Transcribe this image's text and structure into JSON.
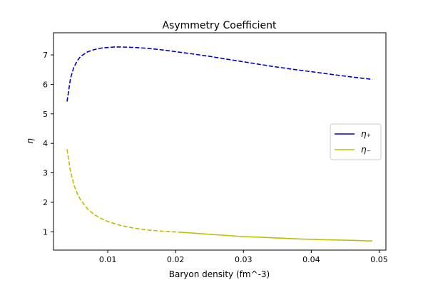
{
  "chart_data": {
    "type": "line",
    "title": "Asymmetry Coefficient",
    "xlabel": "Baryon density (fm^-3)",
    "ylabel": "η",
    "xlim": [
      0.002,
      0.051
    ],
    "ylim": [
      0.38,
      7.75
    ],
    "xticks": [
      0.01,
      0.02,
      0.03,
      0.04,
      0.05
    ],
    "xtick_labels": [
      "0.01",
      "0.02",
      "0.03",
      "0.04",
      "0.05"
    ],
    "yticks": [
      1,
      2,
      3,
      4,
      5,
      6,
      7
    ],
    "ytick_labels": [
      "1",
      "2",
      "3",
      "4",
      "5",
      "6",
      "7"
    ],
    "grid": false,
    "legend_position": "center-right",
    "series": [
      {
        "name": "η₊",
        "color": "#0000cc",
        "style": "dashed",
        "x": [
          0.004,
          0.0045,
          0.005,
          0.0055,
          0.006,
          0.007,
          0.008,
          0.009,
          0.01,
          0.011,
          0.012,
          0.013,
          0.014,
          0.016,
          0.018,
          0.02,
          0.022,
          0.025,
          0.028,
          0.031,
          0.034,
          0.037,
          0.04,
          0.043,
          0.046,
          0.049
        ],
        "y": [
          5.42,
          6.2,
          6.58,
          6.8,
          6.95,
          7.1,
          7.18,
          7.23,
          7.25,
          7.27,
          7.27,
          7.26,
          7.25,
          7.22,
          7.17,
          7.11,
          7.05,
          6.95,
          6.84,
          6.73,
          6.62,
          6.52,
          6.43,
          6.34,
          6.25,
          6.17
        ]
      },
      {
        "name": "η₋",
        "color": "#bfbf00",
        "style": "dashed",
        "solid_from_x": 0.0205,
        "x": [
          0.004,
          0.0045,
          0.005,
          0.0055,
          0.006,
          0.007,
          0.008,
          0.009,
          0.01,
          0.012,
          0.014,
          0.016,
          0.018,
          0.0205,
          0.023,
          0.026,
          0.03,
          0.034,
          0.038,
          0.042,
          0.046,
          0.049
        ],
        "y": [
          3.8,
          3.05,
          2.6,
          2.3,
          2.08,
          1.78,
          1.58,
          1.45,
          1.35,
          1.21,
          1.12,
          1.06,
          1.02,
          0.99,
          0.95,
          0.9,
          0.84,
          0.8,
          0.76,
          0.73,
          0.71,
          0.69
        ]
      }
    ]
  }
}
